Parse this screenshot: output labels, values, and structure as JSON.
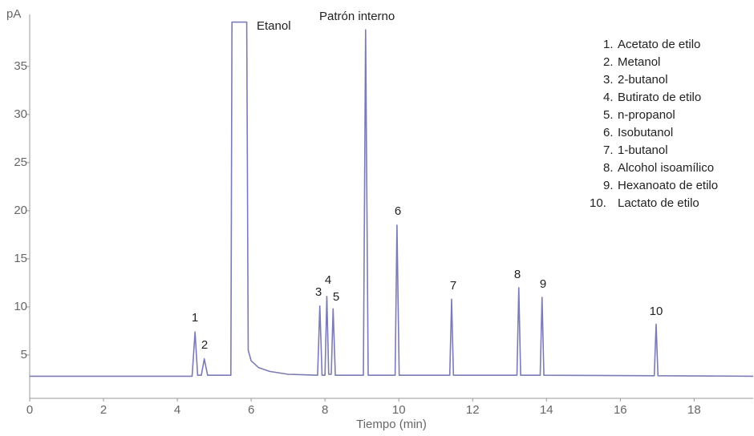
{
  "chart_data": {
    "type": "line",
    "y_label": "pA",
    "x_label": "Tiempo (min)",
    "x": [
      0,
      4.4,
      4.48,
      4.55,
      4.65,
      4.73,
      4.82,
      5.45,
      5.48,
      5.88,
      5.92,
      6.0,
      6.2,
      6.5,
      7.0,
      7.8,
      7.86,
      7.92,
      8.0,
      8.05,
      8.1,
      8.17,
      8.22,
      8.28,
      9.04,
      9.1,
      9.17,
      9.9,
      9.95,
      10.01,
      11.38,
      11.43,
      11.48,
      13.2,
      13.25,
      13.3,
      13.83,
      13.88,
      13.93,
      16.92,
      16.97,
      17.02,
      19.6
    ],
    "series": [
      {
        "color": "#7b7bb5",
        "values": [
          2.8,
          2.8,
          7.4,
          2.9,
          2.9,
          4.6,
          2.9,
          2.9,
          39.6,
          39.6,
          5.5,
          4.4,
          3.7,
          3.3,
          3.0,
          2.9,
          10.1,
          2.9,
          2.9,
          11.1,
          3.0,
          3.0,
          9.8,
          2.9,
          2.9,
          38.8,
          2.9,
          2.9,
          18.5,
          2.9,
          2.9,
          10.8,
          2.9,
          2.9,
          12.0,
          2.9,
          2.9,
          11.0,
          2.9,
          2.85,
          8.2,
          2.85,
          2.8
        ]
      }
    ],
    "xlim": [
      0,
      19.6
    ],
    "ylim": [
      0.5,
      40.4
    ],
    "xticks": [
      0,
      2,
      4,
      6,
      8,
      10,
      12,
      14,
      16,
      18
    ],
    "yticks": [
      5,
      10,
      15,
      20,
      25,
      30,
      35
    ],
    "annotations": [
      "Etanol",
      "Patrón interno",
      "1",
      "2",
      "3",
      "4",
      "5",
      "6",
      "7",
      "8",
      "9",
      "10"
    ],
    "legend": [
      {
        "number": "1.",
        "name": "Acetato de etilo"
      },
      {
        "number": "2.",
        "name": "Metanol"
      },
      {
        "number": "3.",
        "name": "2-butanol"
      },
      {
        "number": "4.",
        "name": "Butirato de etilo"
      },
      {
        "number": "5.",
        "name": "n-propanol"
      },
      {
        "number": "6.",
        "name": "Isobutanol"
      },
      {
        "number": "7.",
        "name": "1-butanol"
      },
      {
        "number": "8.",
        "name": "Alcohol isoamílico"
      },
      {
        "number": "9.",
        "name": "Hexanoato de etilo"
      },
      {
        "number": "10.",
        "name": "Lactato de etilo"
      }
    ]
  }
}
